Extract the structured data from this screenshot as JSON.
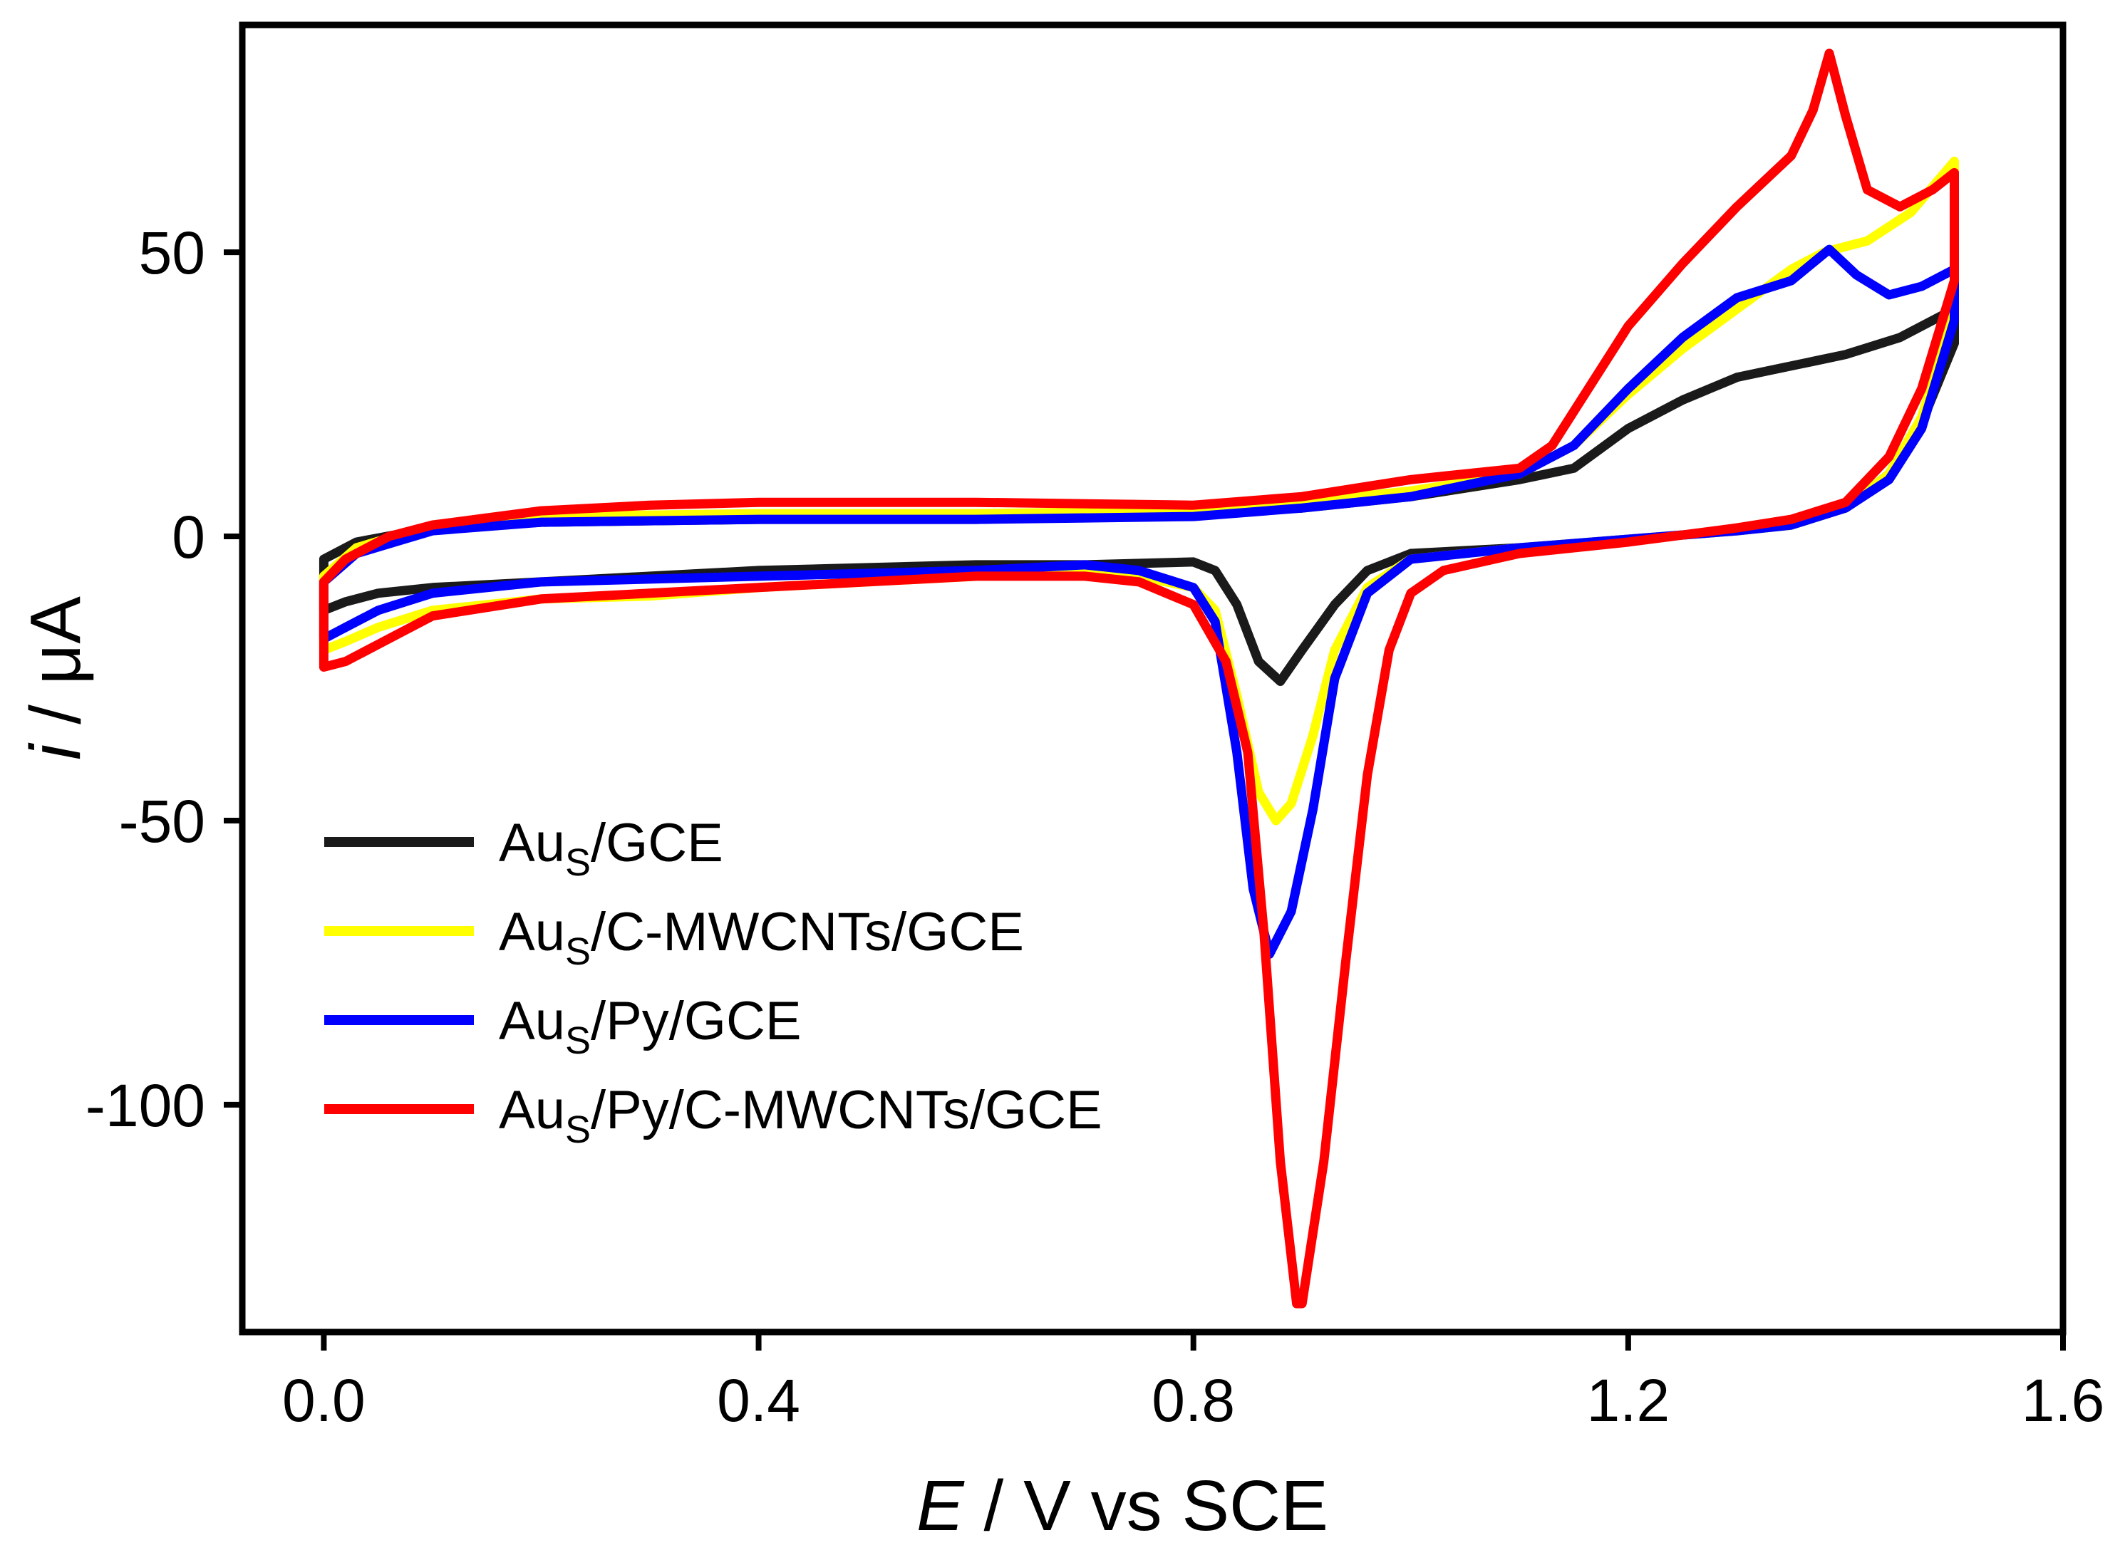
{
  "chart_data": {
    "type": "line",
    "title": "",
    "xlabel": {
      "italic": "E",
      "rest": " / V vs SCE"
    },
    "ylabel": {
      "italic": "i",
      "rest": " / μA"
    },
    "xlim": [
      -0.075,
      1.6
    ],
    "ylim": [
      -140,
      90
    ],
    "xticks": [
      {
        "value": 0.0,
        "label": "0.0"
      },
      {
        "value": 0.4,
        "label": "0.4"
      },
      {
        "value": 0.8,
        "label": "0.8"
      },
      {
        "value": 1.2,
        "label": "1.2"
      },
      {
        "value": 1.6,
        "label": "1.6"
      }
    ],
    "yticks": [
      {
        "value": 50,
        "label": "50"
      },
      {
        "value": 0,
        "label": "0"
      },
      {
        "value": -50,
        "label": "-50"
      },
      {
        "value": -100,
        "label": "-100"
      }
    ],
    "legend_position": "lower-left",
    "series": [
      {
        "name": "Au_S/GCE",
        "legend": {
          "base": "Au",
          "sub": "S",
          "rest": "/GCE"
        },
        "color": "#1a1a1a",
        "points": [
          [
            0,
            -4
          ],
          [
            0.03,
            -1
          ],
          [
            0.1,
            1.5
          ],
          [
            0.2,
            2.5
          ],
          [
            0.4,
            3
          ],
          [
            0.6,
            3
          ],
          [
            0.8,
            4
          ],
          [
            0.9,
            5
          ],
          [
            1.0,
            7
          ],
          [
            1.1,
            10
          ],
          [
            1.15,
            12
          ],
          [
            1.2,
            19
          ],
          [
            1.25,
            24
          ],
          [
            1.3,
            28
          ],
          [
            1.35,
            30
          ],
          [
            1.4,
            32
          ],
          [
            1.45,
            35
          ],
          [
            1.5,
            40
          ],
          [
            1.5,
            34
          ],
          [
            1.47,
            20
          ],
          [
            1.44,
            11
          ],
          [
            1.4,
            5
          ],
          [
            1.35,
            2
          ],
          [
            1.3,
            1
          ],
          [
            1.2,
            -0.5
          ],
          [
            1.1,
            -2
          ],
          [
            1.0,
            -3
          ],
          [
            0.96,
            -6
          ],
          [
            0.93,
            -12
          ],
          [
            0.9,
            -20
          ],
          [
            0.88,
            -25.5
          ],
          [
            0.86,
            -22
          ],
          [
            0.84,
            -12
          ],
          [
            0.82,
            -6
          ],
          [
            0.8,
            -4.5
          ],
          [
            0.7,
            -5
          ],
          [
            0.6,
            -5
          ],
          [
            0.4,
            -6
          ],
          [
            0.2,
            -8
          ],
          [
            0.1,
            -9
          ],
          [
            0.05,
            -10
          ],
          [
            0.02,
            -11.5
          ],
          [
            0,
            -13
          ]
        ]
      },
      {
        "name": "Au_S/C-MWCNTs/GCE",
        "legend": {
          "base": "Au",
          "sub": "S",
          "rest": "/C-MWCNTs/GCE"
        },
        "color": "#ffff00",
        "points": [
          [
            0,
            -7
          ],
          [
            0.03,
            -2
          ],
          [
            0.1,
            2
          ],
          [
            0.2,
            3.5
          ],
          [
            0.4,
            4
          ],
          [
            0.6,
            4
          ],
          [
            0.8,
            4.5
          ],
          [
            0.9,
            6
          ],
          [
            1.0,
            8
          ],
          [
            1.1,
            11
          ],
          [
            1.15,
            16
          ],
          [
            1.2,
            25
          ],
          [
            1.25,
            33
          ],
          [
            1.3,
            40
          ],
          [
            1.35,
            47
          ],
          [
            1.38,
            50
          ],
          [
            1.42,
            52
          ],
          [
            1.46,
            57
          ],
          [
            1.5,
            66
          ],
          [
            1.5,
            40
          ],
          [
            1.47,
            21
          ],
          [
            1.44,
            11
          ],
          [
            1.4,
            5
          ],
          [
            1.35,
            2
          ],
          [
            1.3,
            1
          ],
          [
            1.2,
            -0.5
          ],
          [
            1.1,
            -2
          ],
          [
            1.0,
            -4
          ],
          [
            0.96,
            -9
          ],
          [
            0.93,
            -20
          ],
          [
            0.91,
            -35
          ],
          [
            0.89,
            -47
          ],
          [
            0.876,
            -50
          ],
          [
            0.86,
            -45
          ],
          [
            0.84,
            -28
          ],
          [
            0.82,
            -13
          ],
          [
            0.8,
            -9
          ],
          [
            0.75,
            -7
          ],
          [
            0.7,
            -6
          ],
          [
            0.6,
            -7
          ],
          [
            0.4,
            -9
          ],
          [
            0.3,
            -10.5
          ],
          [
            0.2,
            -11
          ],
          [
            0.1,
            -13
          ],
          [
            0.05,
            -16
          ],
          [
            0.02,
            -18.5
          ],
          [
            0,
            -20
          ]
        ]
      },
      {
        "name": "Au_S/Py/GCE",
        "legend": {
          "base": "Au",
          "sub": "S",
          "rest": "/Py/GCE"
        },
        "color": "#0000ff",
        "points": [
          [
            0,
            -8
          ],
          [
            0.03,
            -3
          ],
          [
            0.1,
            1
          ],
          [
            0.2,
            2.5
          ],
          [
            0.4,
            3
          ],
          [
            0.6,
            3
          ],
          [
            0.8,
            3.5
          ],
          [
            0.9,
            5
          ],
          [
            1.0,
            7
          ],
          [
            1.1,
            11
          ],
          [
            1.15,
            16
          ],
          [
            1.2,
            26
          ],
          [
            1.25,
            35
          ],
          [
            1.3,
            42
          ],
          [
            1.35,
            45
          ],
          [
            1.385,
            50.5
          ],
          [
            1.41,
            46
          ],
          [
            1.44,
            42.5
          ],
          [
            1.47,
            44
          ],
          [
            1.5,
            47
          ],
          [
            1.5,
            38
          ],
          [
            1.47,
            19
          ],
          [
            1.44,
            10
          ],
          [
            1.4,
            5
          ],
          [
            1.35,
            2
          ],
          [
            1.3,
            1
          ],
          [
            1.2,
            -0.5
          ],
          [
            1.1,
            -2
          ],
          [
            1.0,
            -4
          ],
          [
            0.96,
            -10
          ],
          [
            0.93,
            -25
          ],
          [
            0.91,
            -48
          ],
          [
            0.89,
            -66
          ],
          [
            0.87,
            -73.5
          ],
          [
            0.855,
            -62
          ],
          [
            0.84,
            -38
          ],
          [
            0.82,
            -15
          ],
          [
            0.8,
            -9
          ],
          [
            0.75,
            -6
          ],
          [
            0.7,
            -5
          ],
          [
            0.6,
            -6
          ],
          [
            0.4,
            -7
          ],
          [
            0.2,
            -8
          ],
          [
            0.1,
            -10
          ],
          [
            0.05,
            -13
          ],
          [
            0.02,
            -16
          ],
          [
            0,
            -18
          ]
        ]
      },
      {
        "name": "Au_S/Py/C-MWCNTs/GCE",
        "legend": {
          "base": "Au",
          "sub": "S",
          "rest": "/Py/C-MWCNTs/GCE"
        },
        "color": "#ff0000",
        "points": [
          [
            0,
            -8
          ],
          [
            0.02,
            -4
          ],
          [
            0.06,
            0
          ],
          [
            0.1,
            2
          ],
          [
            0.2,
            4.5
          ],
          [
            0.3,
            5.5
          ],
          [
            0.4,
            6
          ],
          [
            0.6,
            6
          ],
          [
            0.8,
            5.5
          ],
          [
            0.9,
            7
          ],
          [
            1.0,
            10
          ],
          [
            1.1,
            12
          ],
          [
            1.13,
            16
          ],
          [
            1.16,
            25
          ],
          [
            1.2,
            37
          ],
          [
            1.25,
            48
          ],
          [
            1.3,
            58
          ],
          [
            1.35,
            67
          ],
          [
            1.37,
            75
          ],
          [
            1.385,
            85
          ],
          [
            1.4,
            74
          ],
          [
            1.42,
            61
          ],
          [
            1.45,
            58
          ],
          [
            1.48,
            61
          ],
          [
            1.5,
            64
          ],
          [
            1.5,
            45
          ],
          [
            1.47,
            26
          ],
          [
            1.44,
            14
          ],
          [
            1.4,
            6
          ],
          [
            1.35,
            3
          ],
          [
            1.3,
            1.5
          ],
          [
            1.2,
            -1
          ],
          [
            1.1,
            -3
          ],
          [
            1.03,
            -6
          ],
          [
            1.0,
            -10
          ],
          [
            0.98,
            -20
          ],
          [
            0.96,
            -42
          ],
          [
            0.94,
            -75
          ],
          [
            0.92,
            -110
          ],
          [
            0.9,
            -135
          ],
          [
            0.895,
            -135
          ],
          [
            0.88,
            -110
          ],
          [
            0.865,
            -70
          ],
          [
            0.85,
            -38
          ],
          [
            0.83,
            -22
          ],
          [
            0.8,
            -12
          ],
          [
            0.75,
            -8
          ],
          [
            0.7,
            -7
          ],
          [
            0.6,
            -7
          ],
          [
            0.4,
            -9
          ],
          [
            0.3,
            -10
          ],
          [
            0.2,
            -11
          ],
          [
            0.1,
            -14
          ],
          [
            0.05,
            -19
          ],
          [
            0.02,
            -22
          ],
          [
            0,
            -23
          ]
        ]
      }
    ]
  }
}
